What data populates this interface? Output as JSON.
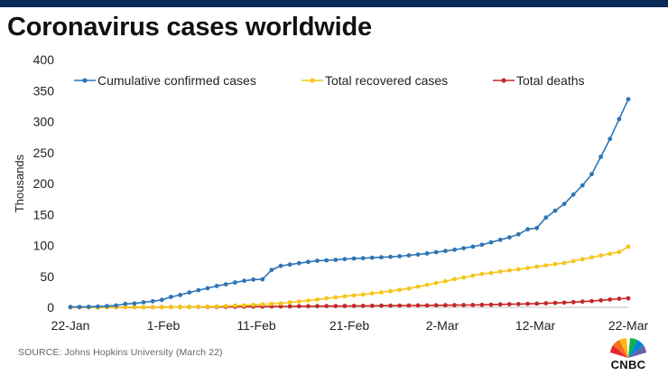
{
  "header": {
    "title": "Coronavirus cases worldwide"
  },
  "footer": {
    "source": "SOURCE:  Johns Hopkins University (March  22)",
    "logo_text": "CNBC"
  },
  "colors": {
    "confirmed": "#2e75b6",
    "recovered": "#f5c518",
    "deaths": "#c62828",
    "brand_bar": "#0a2a57"
  },
  "chart_data": {
    "type": "line",
    "title": "",
    "xlabel": "",
    "ylabel": "Thousands",
    "ylim": [
      0,
      400
    ],
    "yticks": [
      "0",
      "50",
      "100",
      "150",
      "200",
      "250",
      "300",
      "350",
      "400"
    ],
    "xtick_labels": [
      "22-Jan",
      "1-Feb",
      "11-Feb",
      "21-Feb",
      "2-Mar",
      "12-Mar",
      "22-Mar"
    ],
    "x_start": "2020-01-22",
    "x_end": "2020-03-22",
    "grid": false,
    "legend_position": "top",
    "series": [
      {
        "name": "Cumulative confirmed cases",
        "color_key": "confirmed",
        "values": [
          0.6,
          0.6,
          0.9,
          1.3,
          2.1,
          2.9,
          5.6,
          6.2,
          8.2,
          9.8,
          11.9,
          16.8,
          19.9,
          23.9,
          27.6,
          30.8,
          34.4,
          37.1,
          40.2,
          42.8,
          44.8,
          45.2,
          60.4,
          66.9,
          69.0,
          71.2,
          73.3,
          75.2,
          75.7,
          76.7,
          77.8,
          78.8,
          79.3,
          80.1,
          80.7,
          81.4,
          82.5,
          84.0,
          85.2,
          87.0,
          89.0,
          91.0,
          93.0,
          95.5,
          98.0,
          101.0,
          105.0,
          109.0,
          113.0,
          118.0,
          126.0,
          128.0,
          145.0,
          156.0,
          167.0,
          182.0,
          197.0,
          215.0,
          243.0,
          272.0,
          304.0,
          336.0
        ]
      },
      {
        "name": "Total recovered cases",
        "color_key": "recovered",
        "values": [
          0.0,
          0.0,
          0.0,
          0.0,
          0.1,
          0.1,
          0.1,
          0.1,
          0.1,
          0.2,
          0.2,
          0.3,
          0.5,
          0.6,
          0.9,
          1.1,
          1.5,
          2.0,
          2.6,
          3.2,
          3.9,
          4.7,
          5.5,
          6.3,
          8.0,
          9.4,
          10.8,
          12.6,
          14.4,
          16.1,
          17.8,
          19.2,
          20.6,
          22.7,
          24.3,
          26.2,
          28.2,
          30.4,
          33.3,
          36.2,
          39.3,
          42.2,
          45.6,
          48.2,
          51.2,
          53.8,
          55.5,
          57.6,
          59.6,
          61.4,
          63.5,
          65.6,
          67.7,
          69.6,
          71.6,
          74.6,
          77.6,
          80.6,
          83.6,
          86.4,
          89.4,
          97.9
        ]
      },
      {
        "name": "Total deaths",
        "color_key": "deaths",
        "values": [
          0.0,
          0.0,
          0.0,
          0.0,
          0.1,
          0.1,
          0.1,
          0.1,
          0.2,
          0.2,
          0.3,
          0.4,
          0.4,
          0.5,
          0.6,
          0.6,
          0.7,
          0.8,
          0.9,
          1.0,
          1.1,
          1.1,
          1.3,
          1.4,
          1.5,
          1.7,
          1.8,
          1.9,
          2.0,
          2.1,
          2.2,
          2.3,
          2.4,
          2.5,
          2.6,
          2.7,
          2.8,
          2.9,
          3.0,
          3.1,
          3.2,
          3.3,
          3.5,
          3.6,
          3.8,
          4.0,
          4.3,
          4.6,
          4.9,
          5.2,
          5.6,
          6.0,
          6.5,
          7.0,
          7.6,
          8.3,
          9.2,
          10.1,
          11.2,
          12.5,
          13.8,
          14.6
        ]
      }
    ]
  }
}
